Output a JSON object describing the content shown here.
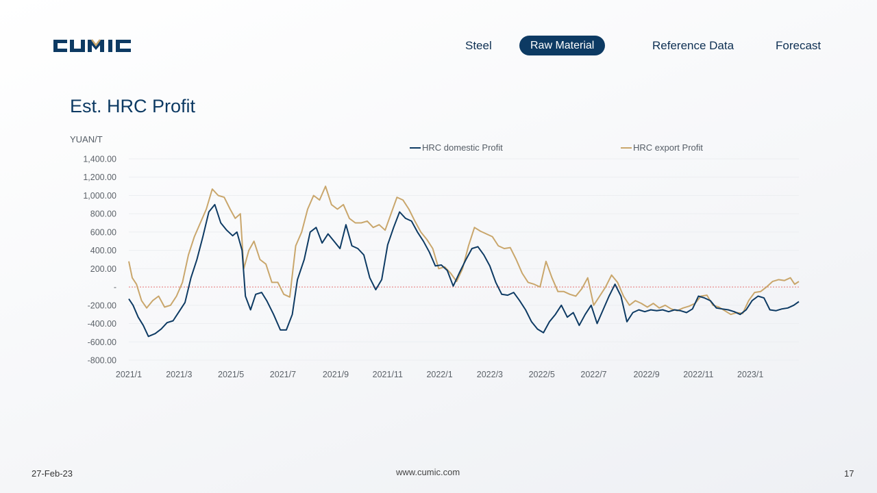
{
  "brand": {
    "logo_text": "CUMIC"
  },
  "nav": {
    "items": [
      {
        "label": "Steel"
      },
      {
        "label": "Raw Material"
      },
      {
        "label": "Reference Data"
      },
      {
        "label": "Forecast"
      }
    ],
    "active": "Raw Material"
  },
  "page": {
    "title": "Est. HRC Profit"
  },
  "footer": {
    "date": "27-Feb-23",
    "website": "www.cumic.com",
    "page_number": "17"
  },
  "colors": {
    "domestic": "#0d3a63",
    "export": "#c9a66b",
    "zero_line": "#e57373",
    "accent": "#0d3a63"
  },
  "chart_data": {
    "type": "line",
    "ylabel": "YUAN/T",
    "ylim": [
      -800,
      1400
    ],
    "yticks": [
      {
        "value": 1400,
        "label": "1,400.00"
      },
      {
        "value": 1200,
        "label": "1,200.00"
      },
      {
        "value": 1000,
        "label": "1,000.00"
      },
      {
        "value": 800,
        "label": "800.00"
      },
      {
        "value": 600,
        "label": "600.00"
      },
      {
        "value": 400,
        "label": "400.00"
      },
      {
        "value": 200,
        "label": "200.00"
      },
      {
        "value": 0,
        "label": "-"
      },
      {
        "value": -200,
        "label": "-200.00"
      },
      {
        "value": -400,
        "label": "-400.00"
      },
      {
        "value": -600,
        "label": "-600.00"
      },
      {
        "value": -800,
        "label": "-800.00"
      }
    ],
    "xlim": [
      "2021-01-01",
      "2023-02-27"
    ],
    "xticks": [
      {
        "date": "2021-01-01",
        "label": "2021/1"
      },
      {
        "date": "2021-03-01",
        "label": "2021/3"
      },
      {
        "date": "2021-05-01",
        "label": "2021/5"
      },
      {
        "date": "2021-07-01",
        "label": "2021/7"
      },
      {
        "date": "2021-09-01",
        "label": "2021/9"
      },
      {
        "date": "2021-11-01",
        "label": "2021/11"
      },
      {
        "date": "2022-01-01",
        "label": "2022/1"
      },
      {
        "date": "2022-03-01",
        "label": "2022/3"
      },
      {
        "date": "2022-05-01",
        "label": "2022/5"
      },
      {
        "date": "2022-07-01",
        "label": "2022/7"
      },
      {
        "date": "2022-09-01",
        "label": "2022/9"
      },
      {
        "date": "2022-11-01",
        "label": "2022/11"
      },
      {
        "date": "2023-01-01",
        "label": "2023/1"
      }
    ],
    "legend_position": "top",
    "grid": "horizontal",
    "series": [
      {
        "name": "HRC domestic Profit",
        "points": [
          [
            "2021-01-01",
            -130
          ],
          [
            "2021-01-06",
            -200
          ],
          [
            "2021-01-12",
            -330
          ],
          [
            "2021-01-18",
            -420
          ],
          [
            "2021-01-24",
            -540
          ],
          [
            "2021-02-01",
            -510
          ],
          [
            "2021-02-08",
            -460
          ],
          [
            "2021-02-15",
            -390
          ],
          [
            "2021-02-22",
            -370
          ],
          [
            "2021-03-01",
            -270
          ],
          [
            "2021-03-08",
            -170
          ],
          [
            "2021-03-15",
            100
          ],
          [
            "2021-03-22",
            300
          ],
          [
            "2021-03-29",
            550
          ],
          [
            "2021-04-05",
            820
          ],
          [
            "2021-04-12",
            900
          ],
          [
            "2021-04-19",
            700
          ],
          [
            "2021-04-26",
            620
          ],
          [
            "2021-05-03",
            560
          ],
          [
            "2021-05-08",
            600
          ],
          [
            "2021-05-14",
            400
          ],
          [
            "2021-05-18",
            -100
          ],
          [
            "2021-05-24",
            -250
          ],
          [
            "2021-05-30",
            -80
          ],
          [
            "2021-06-06",
            -60
          ],
          [
            "2021-06-12",
            -150
          ],
          [
            "2021-06-20",
            -300
          ],
          [
            "2021-06-28",
            -470
          ],
          [
            "2021-07-05",
            -470
          ],
          [
            "2021-07-12",
            -300
          ],
          [
            "2021-07-18",
            80
          ],
          [
            "2021-07-26",
            300
          ],
          [
            "2021-08-02",
            600
          ],
          [
            "2021-08-09",
            650
          ],
          [
            "2021-08-16",
            480
          ],
          [
            "2021-08-23",
            580
          ],
          [
            "2021-08-30",
            500
          ],
          [
            "2021-09-06",
            420
          ],
          [
            "2021-09-13",
            680
          ],
          [
            "2021-09-20",
            450
          ],
          [
            "2021-09-27",
            420
          ],
          [
            "2021-10-04",
            350
          ],
          [
            "2021-10-11",
            100
          ],
          [
            "2021-10-18",
            -30
          ],
          [
            "2021-10-25",
            80
          ],
          [
            "2021-11-01",
            460
          ],
          [
            "2021-11-08",
            650
          ],
          [
            "2021-11-15",
            820
          ],
          [
            "2021-11-22",
            750
          ],
          [
            "2021-11-29",
            720
          ],
          [
            "2021-12-06",
            600
          ],
          [
            "2021-12-13",
            500
          ],
          [
            "2021-12-20",
            380
          ],
          [
            "2021-12-27",
            230
          ],
          [
            "2022-01-03",
            240
          ],
          [
            "2022-01-10",
            180
          ],
          [
            "2022-01-17",
            10
          ],
          [
            "2022-01-24",
            150
          ],
          [
            "2022-02-01",
            300
          ],
          [
            "2022-02-08",
            420
          ],
          [
            "2022-02-15",
            440
          ],
          [
            "2022-02-22",
            350
          ],
          [
            "2022-03-01",
            230
          ],
          [
            "2022-03-08",
            50
          ],
          [
            "2022-03-15",
            -80
          ],
          [
            "2022-03-22",
            -90
          ],
          [
            "2022-03-29",
            -60
          ],
          [
            "2022-04-05",
            -150
          ],
          [
            "2022-04-12",
            -250
          ],
          [
            "2022-04-19",
            -380
          ],
          [
            "2022-04-26",
            -460
          ],
          [
            "2022-05-03",
            -500
          ],
          [
            "2022-05-10",
            -380
          ],
          [
            "2022-05-17",
            -300
          ],
          [
            "2022-05-24",
            -200
          ],
          [
            "2022-05-31",
            -330
          ],
          [
            "2022-06-07",
            -280
          ],
          [
            "2022-06-14",
            -420
          ],
          [
            "2022-06-21",
            -300
          ],
          [
            "2022-06-28",
            -200
          ],
          [
            "2022-07-05",
            -400
          ],
          [
            "2022-07-12",
            -250
          ],
          [
            "2022-07-19",
            -100
          ],
          [
            "2022-07-26",
            30
          ],
          [
            "2022-08-02",
            -100
          ],
          [
            "2022-08-09",
            -380
          ],
          [
            "2022-08-16",
            -280
          ],
          [
            "2022-08-23",
            -250
          ],
          [
            "2022-08-30",
            -270
          ],
          [
            "2022-09-06",
            -250
          ],
          [
            "2022-09-13",
            -260
          ],
          [
            "2022-09-20",
            -250
          ],
          [
            "2022-09-27",
            -270
          ],
          [
            "2022-10-04",
            -250
          ],
          [
            "2022-10-11",
            -260
          ],
          [
            "2022-10-18",
            -280
          ],
          [
            "2022-10-25",
            -240
          ],
          [
            "2022-11-01",
            -100
          ],
          [
            "2022-11-08",
            -120
          ],
          [
            "2022-11-15",
            -150
          ],
          [
            "2022-11-22",
            -230
          ],
          [
            "2022-11-29",
            -240
          ],
          [
            "2022-12-06",
            -250
          ],
          [
            "2022-12-13",
            -270
          ],
          [
            "2022-12-20",
            -300
          ],
          [
            "2022-12-27",
            -250
          ],
          [
            "2023-01-03",
            -150
          ],
          [
            "2023-01-10",
            -100
          ],
          [
            "2023-01-17",
            -120
          ],
          [
            "2023-01-24",
            -250
          ],
          [
            "2023-01-31",
            -260
          ],
          [
            "2023-02-07",
            -240
          ],
          [
            "2023-02-14",
            -230
          ],
          [
            "2023-02-21",
            -200
          ],
          [
            "2023-02-27",
            -160
          ]
        ]
      },
      {
        "name": "HRC export Profit",
        "points": [
          [
            "2021-01-01",
            280
          ],
          [
            "2021-01-05",
            100
          ],
          [
            "2021-01-10",
            30
          ],
          [
            "2021-01-16",
            -150
          ],
          [
            "2021-01-22",
            -230
          ],
          [
            "2021-01-29",
            -150
          ],
          [
            "2021-02-05",
            -100
          ],
          [
            "2021-02-12",
            -220
          ],
          [
            "2021-02-19",
            -200
          ],
          [
            "2021-02-26",
            -100
          ],
          [
            "2021-03-05",
            50
          ],
          [
            "2021-03-12",
            350
          ],
          [
            "2021-03-19",
            550
          ],
          [
            "2021-03-26",
            700
          ],
          [
            "2021-04-02",
            850
          ],
          [
            "2021-04-09",
            1070
          ],
          [
            "2021-04-16",
            1000
          ],
          [
            "2021-04-23",
            980
          ],
          [
            "2021-04-30",
            850
          ],
          [
            "2021-05-06",
            750
          ],
          [
            "2021-05-12",
            800
          ],
          [
            "2021-05-16",
            200
          ],
          [
            "2021-05-22",
            400
          ],
          [
            "2021-05-28",
            500
          ],
          [
            "2021-06-04",
            300
          ],
          [
            "2021-06-11",
            250
          ],
          [
            "2021-06-18",
            50
          ],
          [
            "2021-06-25",
            50
          ],
          [
            "2021-07-02",
            -80
          ],
          [
            "2021-07-09",
            -110
          ],
          [
            "2021-07-16",
            450
          ],
          [
            "2021-07-23",
            600
          ],
          [
            "2021-07-30",
            850
          ],
          [
            "2021-08-06",
            1000
          ],
          [
            "2021-08-13",
            950
          ],
          [
            "2021-08-20",
            1100
          ],
          [
            "2021-08-27",
            900
          ],
          [
            "2021-09-03",
            850
          ],
          [
            "2021-09-10",
            900
          ],
          [
            "2021-09-17",
            750
          ],
          [
            "2021-09-24",
            700
          ],
          [
            "2021-10-01",
            700
          ],
          [
            "2021-10-08",
            720
          ],
          [
            "2021-10-15",
            650
          ],
          [
            "2021-10-22",
            680
          ],
          [
            "2021-10-29",
            620
          ],
          [
            "2021-11-05",
            800
          ],
          [
            "2021-11-12",
            980
          ],
          [
            "2021-11-19",
            950
          ],
          [
            "2021-11-26",
            850
          ],
          [
            "2021-12-03",
            720
          ],
          [
            "2021-12-10",
            600
          ],
          [
            "2021-12-17",
            520
          ],
          [
            "2021-12-24",
            420
          ],
          [
            "2021-12-31",
            200
          ],
          [
            "2022-01-07",
            220
          ],
          [
            "2022-01-14",
            150
          ],
          [
            "2022-01-21",
            60
          ],
          [
            "2022-01-28",
            200
          ],
          [
            "2022-02-04",
            450
          ],
          [
            "2022-02-11",
            650
          ],
          [
            "2022-02-18",
            610
          ],
          [
            "2022-02-25",
            580
          ],
          [
            "2022-03-04",
            550
          ],
          [
            "2022-03-11",
            450
          ],
          [
            "2022-03-18",
            420
          ],
          [
            "2022-03-25",
            430
          ],
          [
            "2022-04-01",
            300
          ],
          [
            "2022-04-08",
            150
          ],
          [
            "2022-04-15",
            50
          ],
          [
            "2022-04-22",
            30
          ],
          [
            "2022-04-29",
            0
          ],
          [
            "2022-05-06",
            280
          ],
          [
            "2022-05-13",
            100
          ],
          [
            "2022-05-20",
            -50
          ],
          [
            "2022-05-27",
            -50
          ],
          [
            "2022-06-03",
            -80
          ],
          [
            "2022-06-10",
            -100
          ],
          [
            "2022-06-17",
            -20
          ],
          [
            "2022-06-24",
            100
          ],
          [
            "2022-07-01",
            -200
          ],
          [
            "2022-07-08",
            -100
          ],
          [
            "2022-07-15",
            0
          ],
          [
            "2022-07-22",
            130
          ],
          [
            "2022-07-29",
            50
          ],
          [
            "2022-08-05",
            -100
          ],
          [
            "2022-08-12",
            -200
          ],
          [
            "2022-08-19",
            -150
          ],
          [
            "2022-08-26",
            -180
          ],
          [
            "2022-09-02",
            -220
          ],
          [
            "2022-09-09",
            -180
          ],
          [
            "2022-09-16",
            -230
          ],
          [
            "2022-09-23",
            -200
          ],
          [
            "2022-09-30",
            -240
          ],
          [
            "2022-10-07",
            -260
          ],
          [
            "2022-10-14",
            -230
          ],
          [
            "2022-10-21",
            -210
          ],
          [
            "2022-10-28",
            -180
          ],
          [
            "2022-11-04",
            -100
          ],
          [
            "2022-11-11",
            -90
          ],
          [
            "2022-11-18",
            -200
          ],
          [
            "2022-11-25",
            -220
          ],
          [
            "2022-12-02",
            -260
          ],
          [
            "2022-12-09",
            -300
          ],
          [
            "2022-12-16",
            -280
          ],
          [
            "2022-12-23",
            -290
          ],
          [
            "2022-12-30",
            -150
          ],
          [
            "2023-01-06",
            -60
          ],
          [
            "2023-01-13",
            -50
          ],
          [
            "2023-01-20",
            0
          ],
          [
            "2023-01-27",
            60
          ],
          [
            "2023-02-03",
            80
          ],
          [
            "2023-02-10",
            70
          ],
          [
            "2023-02-17",
            100
          ],
          [
            "2023-02-22",
            30
          ],
          [
            "2023-02-27",
            60
          ]
        ]
      }
    ]
  }
}
